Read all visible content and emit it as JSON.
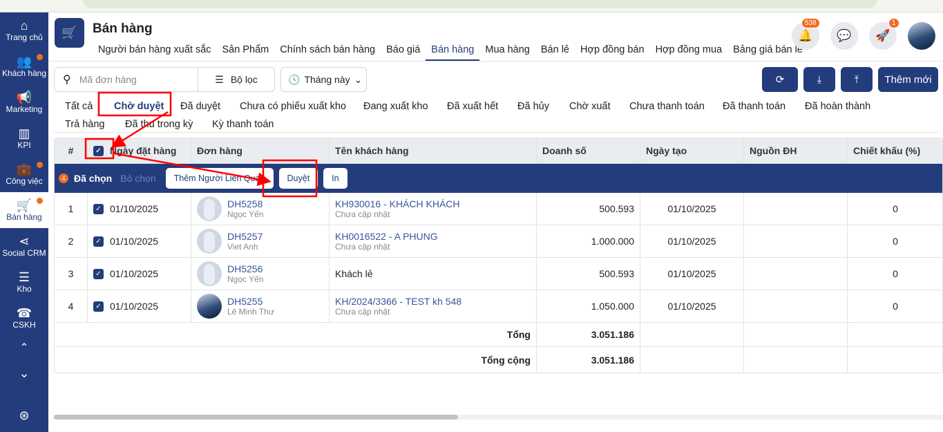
{
  "sidebar": {
    "items": [
      {
        "label": "Trang chủ",
        "icon": "home-icon",
        "glyph": "⌂",
        "dot": false
      },
      {
        "label": "Khách hàng",
        "icon": "users-icon",
        "glyph": "👥",
        "dot": true
      },
      {
        "label": "Marketing",
        "icon": "megaphone-icon",
        "glyph": "📢",
        "dot": false
      },
      {
        "label": "KPI",
        "icon": "chart-icon",
        "glyph": "▥",
        "dot": false
      },
      {
        "label": "Công việc",
        "icon": "briefcase-icon",
        "glyph": "💼",
        "dot": true
      },
      {
        "label": "Bán hàng",
        "icon": "cart-icon",
        "glyph": "🛒",
        "dot": true,
        "active": true
      },
      {
        "label": "Social CRM",
        "icon": "share-icon",
        "glyph": "⋖",
        "dot": false
      },
      {
        "label": "Kho",
        "icon": "warehouse-icon",
        "glyph": "☰",
        "dot": false
      },
      {
        "label": "CSKH",
        "icon": "phone-icon",
        "glyph": "☎",
        "dot": false
      }
    ]
  },
  "header": {
    "title": "Bán hàng",
    "nav": [
      "Người bán hàng xuất sắc",
      "Sản Phẩm",
      "Chính sách bán hàng",
      "Báo giá",
      "Bán hàng",
      "Mua hàng",
      "Bán lẻ",
      "Hợp đồng bán",
      "Hợp đồng mua",
      "Bảng giá bán lẻ"
    ],
    "active_nav": "Bán hàng",
    "notif_count": "538",
    "rocket_count": "1"
  },
  "toolbar": {
    "search_placeholder": "Mã đơn hàng",
    "filter_label": "Bộ lọc",
    "period": "Tháng này",
    "add_label": "Thêm mới"
  },
  "tabs": [
    "Tất cả",
    "Chờ duyệt",
    "Đã duyệt",
    "Chưa có phiếu xuất kho",
    "Đang xuất kho",
    "Đã xuất hết",
    "Đã hủy",
    "Chờ xuất",
    "Chưa thanh toán",
    "Đã thanh toán",
    "Đã hoàn thành",
    "Trả hàng",
    "Đã thu trong kỳ",
    "Kỳ thanh toán"
  ],
  "active_tab": "Chờ duyệt",
  "table": {
    "columns": [
      "#",
      "Ngày đặt hàng",
      "Đơn hàng",
      "Tên khách hàng",
      "Doanh số",
      "Ngày tạo",
      "Nguồn ĐH",
      "Chiết khấu (%)"
    ],
    "selection": {
      "count": "4",
      "selected_label": "Đã chọn",
      "deselect_label": "Bỏ chọn",
      "actions": [
        "Thêm Người Liên Quan",
        "Duyệt",
        "In"
      ]
    },
    "rows": [
      {
        "no": "1",
        "date": "01/10/2025",
        "order": "DH5258",
        "seller": "Ngọc Yến",
        "customer": "KH930016 - KHÁCH KHÁCH",
        "customer_sub": "Chưa cập nhật",
        "revenue": "500.593",
        "created": "01/10/2025",
        "source": "",
        "discount": "0",
        "photo": false
      },
      {
        "no": "2",
        "date": "01/10/2025",
        "order": "DH5257",
        "seller": "Viet Anh",
        "customer": "KH0016522 - A PHUNG",
        "customer_sub": "Chưa cập nhật",
        "revenue": "1.000.000",
        "created": "01/10/2025",
        "source": "",
        "discount": "0",
        "photo": false
      },
      {
        "no": "3",
        "date": "01/10/2025",
        "order": "DH5256",
        "seller": "Ngọc Yến",
        "customer": "Khách lẻ",
        "customer_sub": "",
        "revenue": "500.593",
        "created": "01/10/2025",
        "source": "",
        "discount": "0",
        "photo": false
      },
      {
        "no": "4",
        "date": "01/10/2025",
        "order": "DH5255",
        "seller": "Lê Minh Thư",
        "customer": "KH/2024/3366 - TEST kh 548",
        "customer_sub": "Chưa cập nhật",
        "revenue": "1.050.000",
        "created": "01/10/2025",
        "source": "",
        "discount": "0",
        "photo": true
      }
    ],
    "total_label": "Tổng",
    "total": "3.051.186",
    "grand_label": "Tổng cộng",
    "grand_total": "3.051.186"
  },
  "colors": {
    "primary": "#233c7b",
    "badge": "#f26b21",
    "annotation": "#ff0000"
  }
}
